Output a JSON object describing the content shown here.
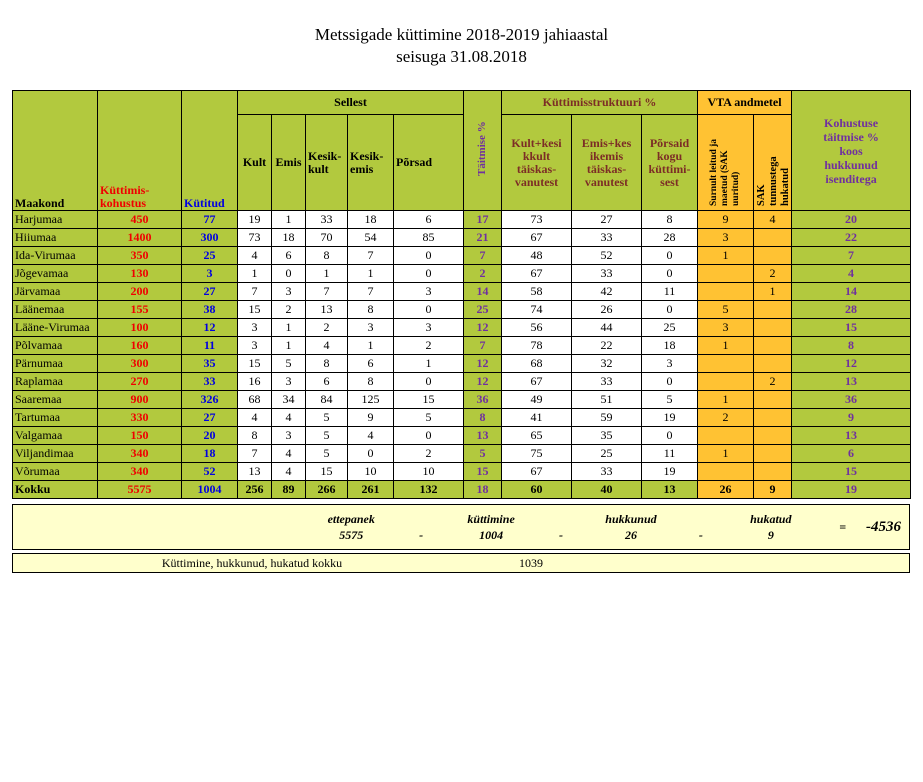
{
  "title": {
    "line1": "Metssigade küttimine 2018-2019 jahiaastal",
    "line2": "seisuga 31.08.2018"
  },
  "colors": {
    "row_green": "#b2c93e",
    "vta_gold": "#ffc233",
    "summary_yellow": "#ffffcc",
    "obligation_red": "#f00000",
    "hunted_blue": "#0000e0",
    "percent_purple": "#70309f",
    "structure_maroon": "#7c2d26"
  },
  "table": {
    "group_headers": {
      "sellest": "Sellest",
      "struktuur": "Küttimisstruktuuri %",
      "vta": "VTA andmetel"
    },
    "headers": {
      "maakond": "Maakond",
      "kohustus": "Küttimis-\nkohustus",
      "kytitud": "Kütitud",
      "kult": "Kult",
      "emis": "Emis",
      "kesikkult": "Kesik-\nkult",
      "kesikemis": "Kesik-\nemis",
      "porsad": "Põrsad",
      "taitmise": "Täitmise %",
      "struct_kult": "Kult+kesi\nkkult\ntäiskas-\nvanutest",
      "struct_emis": "Emis+kes\nikemis\ntäiskas-\nvanutest",
      "struct_porsad": "Põrsaid\nkogu\nküttimi-\nsest",
      "surnult": "Surnult leitud ja\nmaetud (SAK\nuuritud)",
      "sak": "SAK\ntunnustega\nhukatud",
      "kohustuse": "Kohustuse\ntäitmise %\nkoos\nhukkunud\nisenditega"
    }
  },
  "summary": {
    "items": [
      {
        "label": "ettepanek",
        "value": "5575"
      },
      {
        "label": "küttimine",
        "value": "1004"
      },
      {
        "label": "hukkunud",
        "value": "26"
      },
      {
        "label": "hukatud",
        "value": "9"
      }
    ],
    "minus": "-",
    "equals": "=",
    "result": "-4536",
    "total_label": "Küttimine, hukkunud, hukatud kokku",
    "total_value": "1039"
  },
  "chart_data": {
    "type": "table",
    "title": "Metssigade küttimine 2018-2019 jahiaastal seisuga 31.08.2018",
    "columns": [
      "Maakond",
      "Küttimiskohustus",
      "Kütitud",
      "Kult",
      "Emis",
      "Kesikkult",
      "Kesikemis",
      "Põrsad",
      "Täitmise %",
      "Kult+kesikkult täiskasvanutest %",
      "Emis+kesikemis täiskasvanutest %",
      "Põrsaid kogu küttimisest %",
      "Surnult leitud ja maetud (SAK uuritud)",
      "SAK tunnustega hukatud",
      "Kohustuse täitmise % koos hukkunud isenditega"
    ],
    "total_row_name": "Kokku",
    "rows": [
      [
        "Harjumaa",
        450,
        77,
        19,
        1,
        33,
        18,
        6,
        17,
        73,
        27,
        8,
        9,
        4,
        20
      ],
      [
        "Hiiumaa",
        1400,
        300,
        73,
        18,
        70,
        54,
        85,
        21,
        67,
        33,
        28,
        3,
        null,
        22
      ],
      [
        "Ida-Virumaa",
        350,
        25,
        4,
        6,
        8,
        7,
        0,
        7,
        48,
        52,
        0,
        1,
        null,
        7
      ],
      [
        "Jõgevamaa",
        130,
        3,
        1,
        0,
        1,
        1,
        0,
        2,
        67,
        33,
        0,
        null,
        2,
        4
      ],
      [
        "Järvamaa",
        200,
        27,
        7,
        3,
        7,
        7,
        3,
        14,
        58,
        42,
        11,
        null,
        1,
        14
      ],
      [
        "Läänemaa",
        155,
        38,
        15,
        2,
        13,
        8,
        0,
        25,
        74,
        26,
        0,
        5,
        null,
        28
      ],
      [
        "Lääne-Virumaa",
        100,
        12,
        3,
        1,
        2,
        3,
        3,
        12,
        56,
        44,
        25,
        3,
        null,
        15
      ],
      [
        "Põlvamaa",
        160,
        11,
        3,
        1,
        4,
        1,
        2,
        7,
        78,
        22,
        18,
        1,
        null,
        8
      ],
      [
        "Pärnumaa",
        300,
        35,
        15,
        5,
        8,
        6,
        1,
        12,
        68,
        32,
        3,
        null,
        null,
        12
      ],
      [
        "Raplamaa",
        270,
        33,
        16,
        3,
        6,
        8,
        0,
        12,
        67,
        33,
        0,
        null,
        2,
        13
      ],
      [
        "Saaremaa",
        900,
        326,
        68,
        34,
        84,
        125,
        15,
        36,
        49,
        51,
        5,
        1,
        null,
        36
      ],
      [
        "Tartumaa",
        330,
        27,
        4,
        4,
        5,
        9,
        5,
        8,
        41,
        59,
        19,
        2,
        null,
        9
      ],
      [
        "Valgamaa",
        150,
        20,
        8,
        3,
        5,
        4,
        0,
        13,
        65,
        35,
        0,
        null,
        null,
        13
      ],
      [
        "Viljandimaa",
        340,
        18,
        7,
        4,
        5,
        0,
        2,
        5,
        75,
        25,
        11,
        1,
        null,
        6
      ],
      [
        "Võrumaa",
        340,
        52,
        13,
        4,
        15,
        10,
        10,
        15,
        67,
        33,
        19,
        null,
        null,
        15
      ],
      [
        "Kokku",
        5575,
        1004,
        256,
        89,
        266,
        261,
        132,
        18,
        60,
        40,
        13,
        26,
        9,
        19
      ]
    ]
  }
}
